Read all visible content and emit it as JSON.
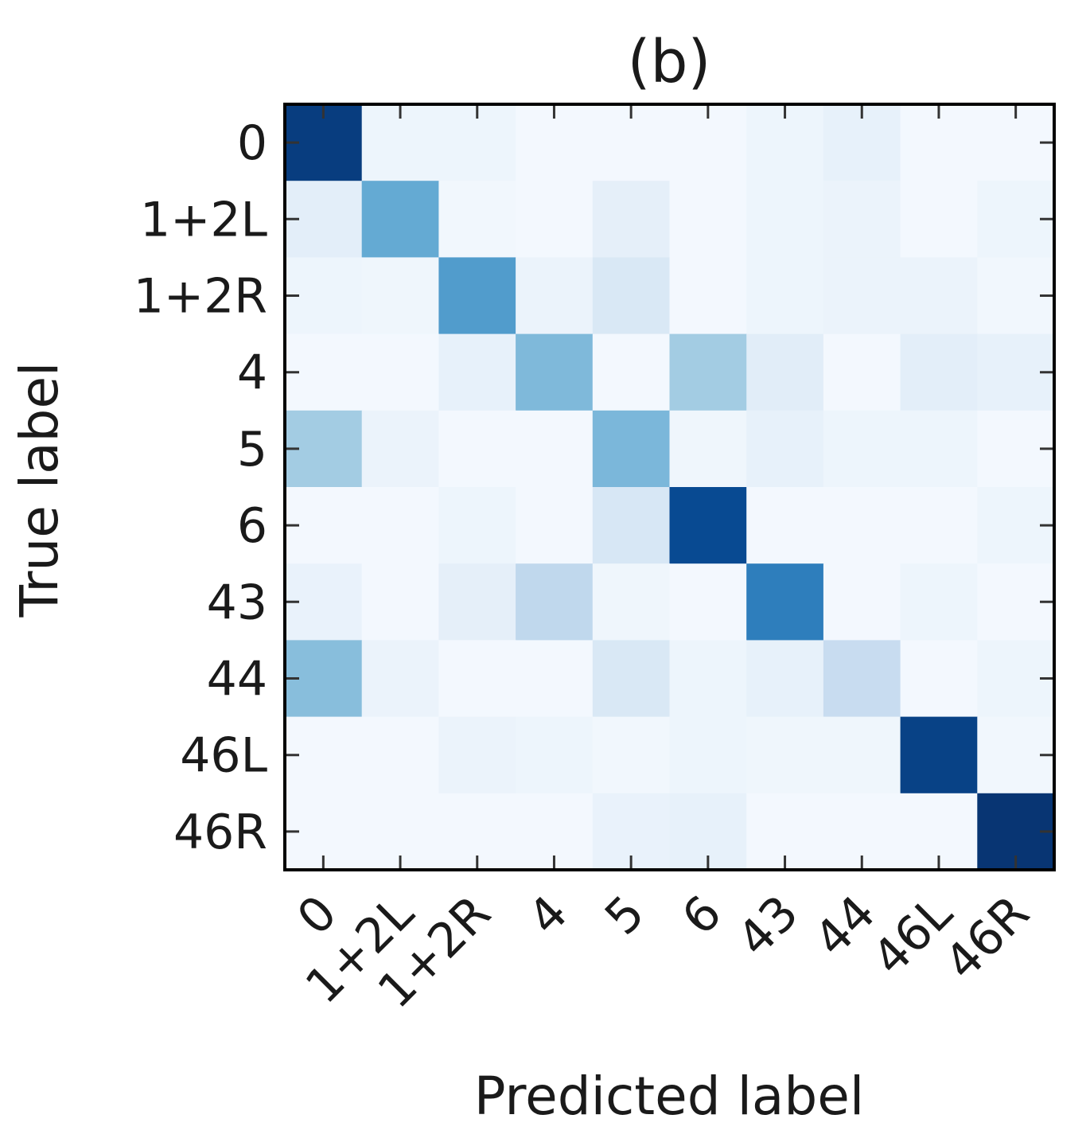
{
  "chart_data": {
    "type": "heatmap",
    "title": "(b)",
    "xlabel": "Predicted label",
    "ylabel": "True label",
    "x_categories": [
      "0",
      "1+2L",
      "1+2R",
      "4",
      "5",
      "6",
      "43",
      "44",
      "46L",
      "46R"
    ],
    "y_categories": [
      "0",
      "1+2L",
      "1+2R",
      "4",
      "5",
      "6",
      "43",
      "44",
      "46L",
      "46R"
    ],
    "colormap": "Blues",
    "value_range": [
      0,
      1
    ],
    "grid": false,
    "colorbar": false,
    "values": [
      [
        0.95,
        0.05,
        0.05,
        0.02,
        0.02,
        0.02,
        0.05,
        0.08,
        0.02,
        0.02
      ],
      [
        0.1,
        0.52,
        0.03,
        0.02,
        0.09,
        0.02,
        0.05,
        0.06,
        0.02,
        0.05
      ],
      [
        0.05,
        0.04,
        0.58,
        0.06,
        0.15,
        0.02,
        0.05,
        0.06,
        0.06,
        0.03
      ],
      [
        0.02,
        0.02,
        0.08,
        0.45,
        0.02,
        0.36,
        0.11,
        0.02,
        0.1,
        0.08
      ],
      [
        0.36,
        0.06,
        0.02,
        0.02,
        0.46,
        0.04,
        0.08,
        0.05,
        0.05,
        0.02
      ],
      [
        0.02,
        0.02,
        0.05,
        0.02,
        0.16,
        0.9,
        0.02,
        0.02,
        0.02,
        0.05
      ],
      [
        0.07,
        0.02,
        0.09,
        0.27,
        0.04,
        0.02,
        0.7,
        0.02,
        0.05,
        0.02
      ],
      [
        0.43,
        0.06,
        0.02,
        0.02,
        0.15,
        0.05,
        0.08,
        0.24,
        0.02,
        0.05
      ],
      [
        0.02,
        0.02,
        0.06,
        0.05,
        0.03,
        0.05,
        0.04,
        0.04,
        0.93,
        0.03
      ],
      [
        0.02,
        0.02,
        0.02,
        0.02,
        0.07,
        0.08,
        0.02,
        0.02,
        0.02,
        0.98
      ]
    ]
  }
}
